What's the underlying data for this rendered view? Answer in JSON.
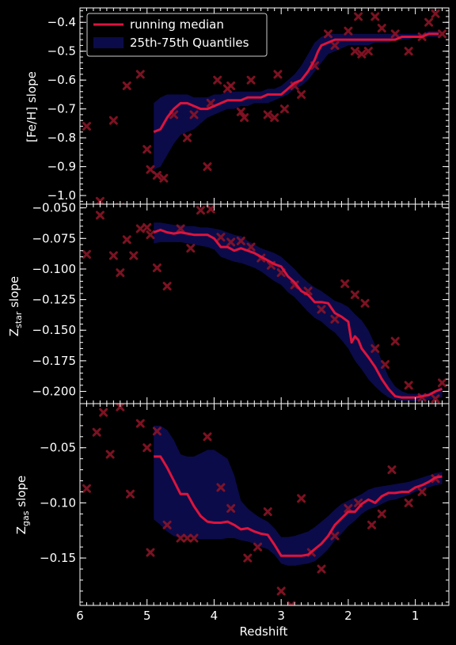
{
  "colors": {
    "background": "#000000",
    "axes": "#ffffff",
    "median": "#dc143c",
    "band": "#0b0b4a",
    "points": "#8b1426"
  },
  "chart_data": [
    {
      "type": "line",
      "ylabel": "[Fe/H] slope",
      "xlabel": "",
      "xlim": [
        6.0,
        0.5
      ],
      "ylim": [
        -1.03,
        -0.35
      ],
      "yticks": [
        -1.0,
        -0.9,
        -0.8,
        -0.7,
        -0.6,
        -0.5,
        -0.4
      ],
      "ytick_labels": [
        "−1.0",
        "−0.9",
        "−0.8",
        "−0.7",
        "−0.6",
        "−0.5",
        "−0.4"
      ],
      "legend": {
        "position": "top-left",
        "entries": [
          {
            "label": "running median",
            "kind": "line"
          },
          {
            "label": "25th-75th Quantiles",
            "kind": "band"
          }
        ]
      },
      "median": {
        "x": [
          4.9,
          4.8,
          4.7,
          4.6,
          4.5,
          4.4,
          4.3,
          4.2,
          4.1,
          4.0,
          3.9,
          3.8,
          3.7,
          3.6,
          3.5,
          3.4,
          3.3,
          3.2,
          3.1,
          3.0,
          2.9,
          2.8,
          2.7,
          2.6,
          2.5,
          2.45,
          2.4,
          2.3,
          2.2,
          2.1,
          2.0,
          1.9,
          1.8,
          1.7,
          1.6,
          1.5,
          1.4,
          1.3,
          1.2,
          1.1,
          1.0,
          0.9,
          0.8,
          0.7,
          0.65
        ],
        "y": [
          -0.78,
          -0.77,
          -0.73,
          -0.7,
          -0.68,
          -0.68,
          -0.69,
          -0.7,
          -0.7,
          -0.69,
          -0.68,
          -0.67,
          -0.67,
          -0.67,
          -0.66,
          -0.66,
          -0.66,
          -0.65,
          -0.65,
          -0.65,
          -0.63,
          -0.61,
          -0.6,
          -0.57,
          -0.53,
          -0.5,
          -0.48,
          -0.47,
          -0.46,
          -0.46,
          -0.46,
          -0.46,
          -0.46,
          -0.46,
          -0.46,
          -0.46,
          -0.46,
          -0.46,
          -0.45,
          -0.45,
          -0.45,
          -0.45,
          -0.44,
          -0.44,
          -0.44
        ]
      },
      "band": {
        "x": [
          4.9,
          4.8,
          4.7,
          4.6,
          4.5,
          4.4,
          4.3,
          4.2,
          4.1,
          4.0,
          3.9,
          3.8,
          3.7,
          3.6,
          3.5,
          3.4,
          3.3,
          3.2,
          3.1,
          3.0,
          2.9,
          2.8,
          2.7,
          2.6,
          2.5,
          2.4,
          2.3,
          2.2,
          2.1,
          2.0,
          1.9,
          1.8,
          1.7,
          1.6,
          1.5,
          1.4,
          1.3,
          1.2,
          1.1,
          1.0,
          0.9,
          0.8,
          0.7,
          0.65
        ],
        "lower": [
          -0.91,
          -0.9,
          -0.86,
          -0.82,
          -0.79,
          -0.78,
          -0.77,
          -0.75,
          -0.73,
          -0.72,
          -0.71,
          -0.7,
          -0.7,
          -0.69,
          -0.69,
          -0.68,
          -0.68,
          -0.68,
          -0.67,
          -0.66,
          -0.65,
          -0.63,
          -0.62,
          -0.6,
          -0.57,
          -0.54,
          -0.51,
          -0.5,
          -0.49,
          -0.48,
          -0.48,
          -0.48,
          -0.48,
          -0.47,
          -0.47,
          -0.47,
          -0.46,
          -0.46,
          -0.46,
          -0.45,
          -0.45,
          -0.45,
          -0.45,
          -0.45
        ],
        "upper": [
          -0.68,
          -0.66,
          -0.65,
          -0.65,
          -0.65,
          -0.65,
          -0.66,
          -0.66,
          -0.66,
          -0.65,
          -0.65,
          -0.64,
          -0.64,
          -0.64,
          -0.64,
          -0.64,
          -0.64,
          -0.63,
          -0.63,
          -0.62,
          -0.6,
          -0.58,
          -0.55,
          -0.51,
          -0.47,
          -0.45,
          -0.44,
          -0.44,
          -0.44,
          -0.44,
          -0.44,
          -0.44,
          -0.44,
          -0.44,
          -0.44,
          -0.44,
          -0.44,
          -0.44,
          -0.44,
          -0.44,
          -0.44,
          -0.43,
          -0.43,
          -0.43
        ]
      },
      "scatter": {
        "x": [
          5.9,
          5.7,
          5.5,
          5.4,
          5.3,
          5.1,
          5.0,
          4.95,
          4.85,
          4.75,
          4.6,
          4.4,
          4.3,
          4.1,
          4.05,
          3.95,
          3.8,
          3.75,
          3.6,
          3.55,
          3.45,
          3.2,
          3.1,
          3.05,
          2.95,
          2.8,
          2.7,
          2.5,
          2.3,
          2.2,
          2.0,
          1.9,
          1.85,
          1.8,
          1.7,
          1.6,
          1.5,
          1.3,
          1.1,
          0.9,
          0.8,
          0.7,
          0.6
        ],
        "y": [
          -0.76,
          -1.02,
          -0.74,
          -1.04,
          -0.62,
          -0.58,
          -0.84,
          -0.91,
          -0.93,
          -0.94,
          -0.72,
          -0.8,
          -0.72,
          -0.9,
          -0.68,
          -0.6,
          -0.63,
          -0.62,
          -0.71,
          -0.73,
          -0.6,
          -0.72,
          -0.73,
          -0.58,
          -0.7,
          -0.62,
          -0.65,
          -0.55,
          -0.44,
          -0.48,
          -0.43,
          -0.5,
          -0.38,
          -0.51,
          -0.5,
          -0.38,
          -0.42,
          -0.44,
          -0.5,
          -0.45,
          -0.4,
          -0.37,
          -0.44
        ]
      }
    },
    {
      "type": "line",
      "ylabel": "Z_star slope",
      "ylabel_main": "Z",
      "ylabel_sub": "star",
      "ylabel_rest": " slope",
      "xlabel": "",
      "xlim": [
        6.0,
        0.5
      ],
      "ylim": [
        -0.21,
        -0.047
      ],
      "yticks": [
        -0.2,
        -0.175,
        -0.15,
        -0.125,
        -0.1,
        -0.075,
        -0.05
      ],
      "ytick_labels": [
        "−0.200",
        "−0.175",
        "−0.150",
        "−0.125",
        "−0.100",
        "−0.075",
        "−0.050"
      ],
      "median": {
        "x": [
          4.9,
          4.8,
          4.7,
          4.6,
          4.5,
          4.4,
          4.3,
          4.2,
          4.1,
          4.0,
          3.9,
          3.8,
          3.7,
          3.6,
          3.5,
          3.4,
          3.3,
          3.2,
          3.1,
          3.0,
          2.9,
          2.8,
          2.7,
          2.6,
          2.5,
          2.4,
          2.3,
          2.2,
          2.1,
          2.0,
          1.95,
          1.9,
          1.85,
          1.8,
          1.7,
          1.6,
          1.5,
          1.4,
          1.3,
          1.2,
          1.1,
          1.0,
          0.9,
          0.8,
          0.7,
          0.6
        ],
        "y": [
          -0.07,
          -0.068,
          -0.07,
          -0.071,
          -0.07,
          -0.071,
          -0.072,
          -0.072,
          -0.072,
          -0.075,
          -0.082,
          -0.082,
          -0.085,
          -0.083,
          -0.085,
          -0.087,
          -0.09,
          -0.093,
          -0.096,
          -0.098,
          -0.106,
          -0.111,
          -0.118,
          -0.121,
          -0.127,
          -0.127,
          -0.128,
          -0.136,
          -0.139,
          -0.143,
          -0.16,
          -0.155,
          -0.158,
          -0.165,
          -0.172,
          -0.18,
          -0.19,
          -0.198,
          -0.204,
          -0.205,
          -0.205,
          -0.205,
          -0.204,
          -0.203,
          -0.2,
          -0.198
        ]
      },
      "band": {
        "x": [
          4.9,
          4.8,
          4.7,
          4.6,
          4.5,
          4.4,
          4.3,
          4.2,
          4.1,
          4.0,
          3.9,
          3.8,
          3.7,
          3.6,
          3.5,
          3.4,
          3.3,
          3.2,
          3.1,
          3.0,
          2.9,
          2.8,
          2.7,
          2.6,
          2.5,
          2.4,
          2.3,
          2.2,
          2.1,
          2.0,
          1.9,
          1.8,
          1.7,
          1.6,
          1.5,
          1.4,
          1.3,
          1.2,
          1.1,
          1.0,
          0.9,
          0.8,
          0.7,
          0.6
        ],
        "lower": [
          -0.079,
          -0.078,
          -0.078,
          -0.078,
          -0.078,
          -0.079,
          -0.08,
          -0.081,
          -0.082,
          -0.084,
          -0.09,
          -0.092,
          -0.094,
          -0.095,
          -0.097,
          -0.099,
          -0.102,
          -0.106,
          -0.11,
          -0.113,
          -0.119,
          -0.123,
          -0.129,
          -0.135,
          -0.14,
          -0.143,
          -0.148,
          -0.152,
          -0.158,
          -0.165,
          -0.175,
          -0.182,
          -0.19,
          -0.196,
          -0.201,
          -0.205,
          -0.207,
          -0.208,
          -0.208,
          -0.208,
          -0.208,
          -0.207,
          -0.206,
          -0.205
        ],
        "upper": [
          -0.062,
          -0.062,
          -0.063,
          -0.064,
          -0.064,
          -0.065,
          -0.065,
          -0.066,
          -0.066,
          -0.067,
          -0.068,
          -0.07,
          -0.072,
          -0.073,
          -0.077,
          -0.08,
          -0.083,
          -0.085,
          -0.087,
          -0.09,
          -0.095,
          -0.1,
          -0.106,
          -0.111,
          -0.115,
          -0.118,
          -0.122,
          -0.126,
          -0.128,
          -0.131,
          -0.137,
          -0.142,
          -0.15,
          -0.162,
          -0.175,
          -0.188,
          -0.196,
          -0.2,
          -0.202,
          -0.202,
          -0.202,
          -0.201,
          -0.199,
          -0.196
        ]
      },
      "scatter": {
        "x": [
          5.9,
          5.7,
          5.5,
          5.4,
          5.3,
          5.2,
          5.1,
          5.0,
          4.95,
          4.85,
          4.7,
          4.5,
          4.35,
          4.2,
          4.05,
          3.9,
          3.75,
          3.6,
          3.45,
          3.3,
          3.15,
          3.0,
          2.8,
          2.6,
          2.4,
          2.2,
          2.05,
          1.9,
          1.75,
          1.6,
          1.45,
          1.3,
          1.1,
          0.9,
          0.7,
          0.6
        ],
        "y": [
          -0.088,
          -0.056,
          -0.089,
          -0.103,
          -0.076,
          -0.089,
          -0.067,
          -0.066,
          -0.072,
          -0.099,
          -0.114,
          -0.067,
          -0.083,
          -0.052,
          -0.051,
          -0.074,
          -0.078,
          -0.077,
          -0.082,
          -0.091,
          -0.097,
          -0.103,
          -0.113,
          -0.118,
          -0.133,
          -0.141,
          -0.112,
          -0.121,
          -0.128,
          -0.165,
          -0.178,
          -0.159,
          -0.195,
          -0.205,
          -0.206,
          -0.193
        ]
      }
    },
    {
      "type": "line",
      "ylabel": "Z_gas slope",
      "ylabel_main": "Z",
      "ylabel_sub": "gas",
      "ylabel_rest": " slope",
      "xlabel": "Redshift",
      "xlim": [
        6.0,
        0.5
      ],
      "ylim": [
        -0.193,
        -0.01
      ],
      "xticks": [
        6,
        5,
        4,
        3,
        2,
        1
      ],
      "xtick_labels": [
        "6",
        "5",
        "4",
        "3",
        "2",
        "1"
      ],
      "yticks": [
        -0.15,
        -0.1,
        -0.05
      ],
      "ytick_labels": [
        "−0.15",
        "−0.10",
        "−0.05"
      ],
      "median": {
        "x": [
          4.9,
          4.8,
          4.7,
          4.6,
          4.5,
          4.4,
          4.3,
          4.2,
          4.1,
          4.0,
          3.9,
          3.8,
          3.7,
          3.6,
          3.5,
          3.4,
          3.3,
          3.2,
          3.1,
          3.0,
          2.9,
          2.8,
          2.7,
          2.6,
          2.5,
          2.4,
          2.3,
          2.2,
          2.1,
          2.0,
          1.9,
          1.8,
          1.7,
          1.6,
          1.5,
          1.4,
          1.3,
          1.2,
          1.1,
          1.0,
          0.9,
          0.8,
          0.7,
          0.6
        ],
        "y": [
          -0.058,
          -0.058,
          -0.068,
          -0.08,
          -0.092,
          -0.092,
          -0.103,
          -0.112,
          -0.117,
          -0.118,
          -0.118,
          -0.117,
          -0.12,
          -0.124,
          -0.123,
          -0.126,
          -0.128,
          -0.129,
          -0.138,
          -0.148,
          -0.148,
          -0.148,
          -0.148,
          -0.147,
          -0.142,
          -0.137,
          -0.13,
          -0.12,
          -0.114,
          -0.108,
          -0.108,
          -0.101,
          -0.097,
          -0.1,
          -0.094,
          -0.091,
          -0.091,
          -0.09,
          -0.09,
          -0.086,
          -0.084,
          -0.081,
          -0.077,
          -0.076
        ]
      },
      "band": {
        "x": [
          4.9,
          4.8,
          4.7,
          4.6,
          4.5,
          4.4,
          4.3,
          4.2,
          4.1,
          4.0,
          3.9,
          3.8,
          3.7,
          3.6,
          3.5,
          3.4,
          3.3,
          3.2,
          3.1,
          3.0,
          2.9,
          2.8,
          2.7,
          2.6,
          2.5,
          2.4,
          2.3,
          2.2,
          2.1,
          2.0,
          1.9,
          1.8,
          1.7,
          1.6,
          1.5,
          1.4,
          1.3,
          1.2,
          1.1,
          1.0,
          0.9,
          0.8,
          0.7,
          0.6
        ],
        "lower": [
          -0.115,
          -0.12,
          -0.126,
          -0.13,
          -0.132,
          -0.131,
          -0.132,
          -0.133,
          -0.133,
          -0.133,
          -0.133,
          -0.132,
          -0.132,
          -0.134,
          -0.135,
          -0.137,
          -0.14,
          -0.142,
          -0.147,
          -0.155,
          -0.157,
          -0.157,
          -0.156,
          -0.155,
          -0.153,
          -0.148,
          -0.142,
          -0.134,
          -0.128,
          -0.121,
          -0.116,
          -0.11,
          -0.106,
          -0.104,
          -0.101,
          -0.098,
          -0.097,
          -0.095,
          -0.093,
          -0.09,
          -0.088,
          -0.086,
          -0.084,
          -0.083
        ],
        "upper": [
          -0.03,
          -0.03,
          -0.034,
          -0.043,
          -0.056,
          -0.058,
          -0.058,
          -0.055,
          -0.052,
          -0.052,
          -0.056,
          -0.06,
          -0.075,
          -0.098,
          -0.105,
          -0.11,
          -0.114,
          -0.117,
          -0.123,
          -0.131,
          -0.131,
          -0.13,
          -0.128,
          -0.126,
          -0.122,
          -0.117,
          -0.112,
          -0.106,
          -0.101,
          -0.098,
          -0.095,
          -0.092,
          -0.088,
          -0.086,
          -0.085,
          -0.084,
          -0.083,
          -0.082,
          -0.081,
          -0.079,
          -0.077,
          -0.075,
          -0.073,
          -0.072
        ]
      },
      "scatter": {
        "x": [
          5.9,
          5.75,
          5.65,
          5.55,
          5.4,
          5.25,
          5.1,
          5.0,
          4.95,
          4.85,
          4.7,
          4.5,
          4.4,
          4.3,
          4.1,
          3.9,
          3.75,
          3.5,
          3.35,
          3.2,
          3.0,
          2.85,
          2.7,
          2.55,
          2.4,
          2.2,
          2.0,
          1.85,
          1.65,
          1.5,
          1.35,
          1.1,
          0.9,
          0.7
        ],
        "y": [
          -0.087,
          -0.036,
          -0.018,
          -0.056,
          -0.013,
          -0.092,
          -0.028,
          -0.05,
          -0.145,
          -0.035,
          -0.12,
          -0.132,
          -0.132,
          -0.132,
          -0.04,
          -0.086,
          -0.105,
          -0.15,
          -0.14,
          -0.108,
          -0.18,
          -0.193,
          -0.096,
          -0.145,
          -0.16,
          -0.13,
          -0.105,
          -0.1,
          -0.12,
          -0.11,
          -0.07,
          -0.1,
          -0.09,
          -0.078
        ]
      }
    }
  ]
}
